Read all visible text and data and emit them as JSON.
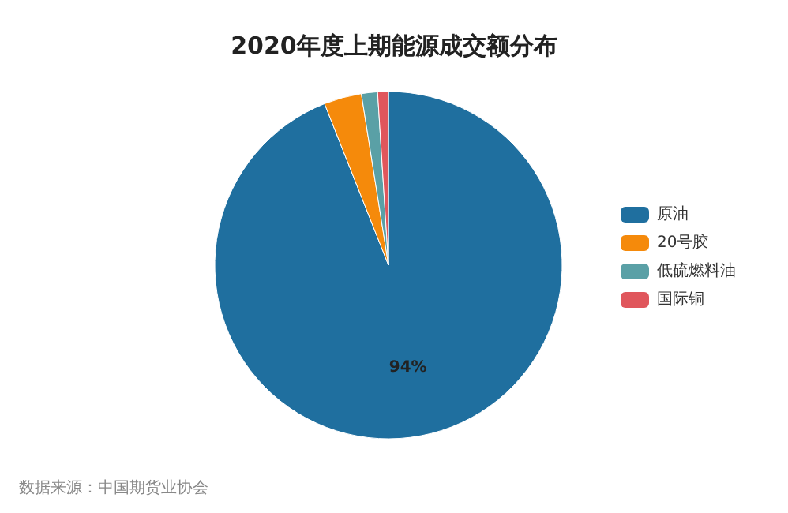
{
  "chart_data": {
    "type": "pie",
    "title": "2020年度上期能源成交额分布",
    "categories": [
      "原油",
      "20号胶",
      "低硫燃料油",
      "国际铜"
    ],
    "values": [
      94,
      3.5,
      1.5,
      1
    ],
    "colors": [
      "#1f6f9f",
      "#f58a0b",
      "#5aa0a6",
      "#e0565c"
    ],
    "value_labels": [
      "94%",
      null,
      null,
      null
    ],
    "legend": "right",
    "annotations": [
      "数据来源：中国期货业协会"
    ]
  }
}
